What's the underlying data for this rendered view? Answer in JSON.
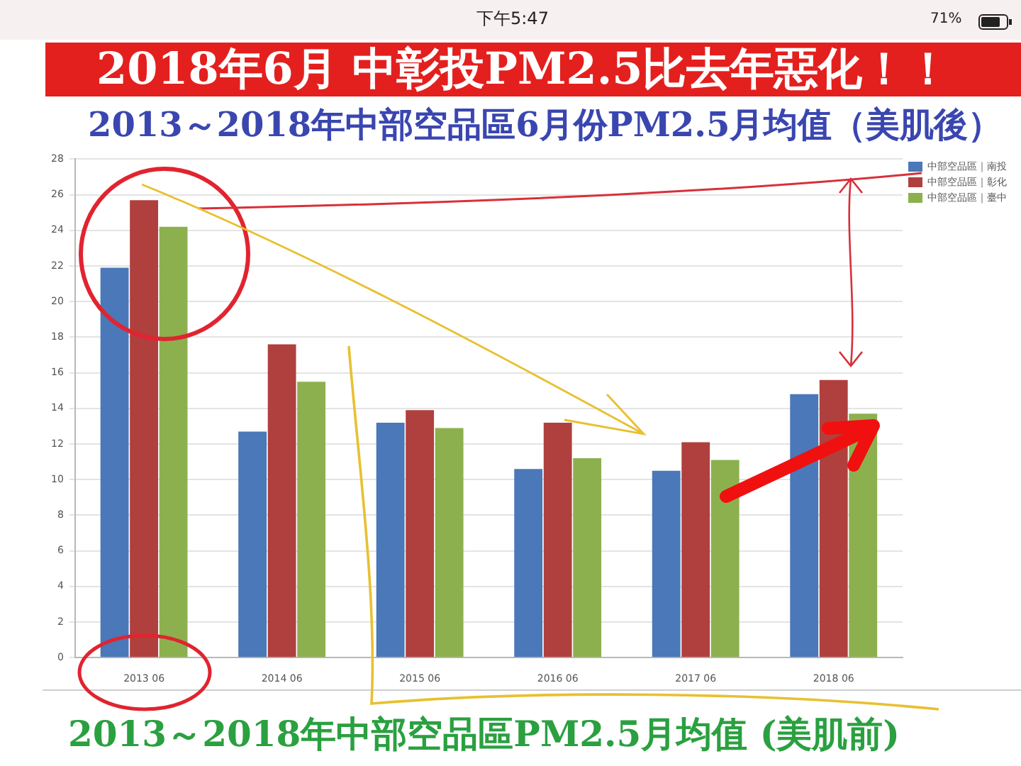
{
  "chart_data": {
    "type": "bar",
    "title": "2018年6月 中彰投PM2.5比去年惡化！！",
    "subtitle": "2013～2018年中部空品區6月份PM2.5月均值（美肌後）",
    "annotations": [
      "2013～2018年中部空品區PM2.5月均值 (美肌前)",
      "下午5:47",
      "71%"
    ],
    "categories": [
      "2013 06",
      "2014 06",
      "2015 06",
      "2016 06",
      "2017 06",
      "2018 06"
    ],
    "series": [
      {
        "name": "中部空品區｜南投",
        "color": "#4a78b8",
        "values": [
          21.9,
          12.7,
          13.2,
          10.6,
          10.5,
          14.8
        ]
      },
      {
        "name": "中部空品區｜彰化",
        "color": "#b0403d",
        "values": [
          25.7,
          17.6,
          13.9,
          13.2,
          12.1,
          15.6
        ]
      },
      {
        "name": "中部空品區｜臺中",
        "color": "#8db04f",
        "values": [
          24.2,
          15.5,
          12.9,
          11.2,
          11.1,
          13.7
        ]
      }
    ],
    "ylim": [
      0,
      28
    ],
    "yticks": [
      0,
      2,
      4,
      6,
      8,
      10,
      12,
      14,
      16,
      18,
      20,
      22,
      24,
      26,
      28
    ],
    "grid": "y",
    "legend": "top right"
  }
}
